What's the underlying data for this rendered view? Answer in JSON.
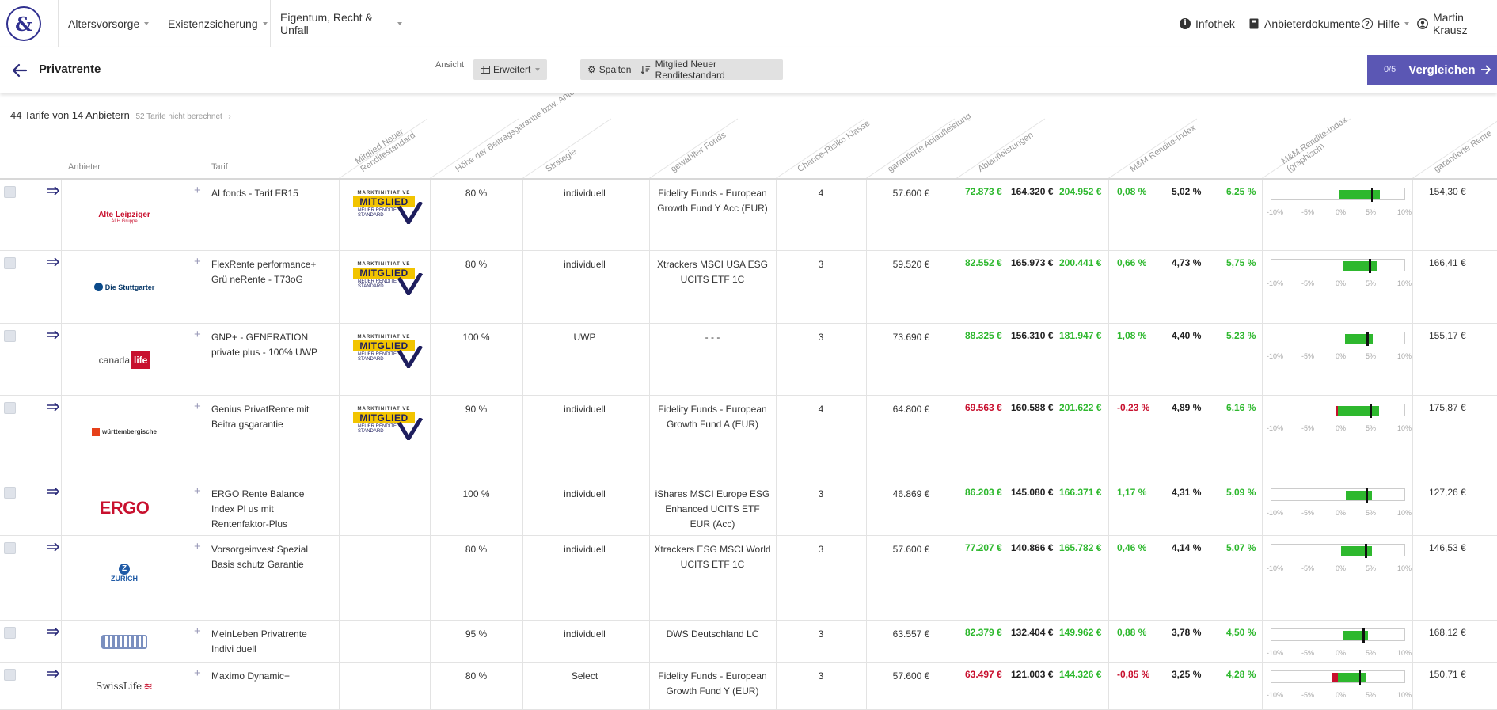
{
  "nav": {
    "logo": "&",
    "items": [
      {
        "label": "Altersvorsorge"
      },
      {
        "label": "Existenzsicherung"
      },
      {
        "label": "Eigentum, Recht & Unfall"
      }
    ],
    "right": {
      "infothek": "Infothek",
      "anbieterdokumente": "Anbieterdokumente",
      "hilfe": "Hilfe",
      "user": "Martin Krausz"
    }
  },
  "toolbar": {
    "title": "Privatrente",
    "ansicht_label": "Ansicht",
    "ansicht_value": "Erweitert",
    "spalten": "Spalten",
    "sort_label": "Mitglied Neuer Renditestandard",
    "compare_count": "0/5",
    "compare_label": "Vergleichen"
  },
  "summary": {
    "main": "44 Tarife von 14 Anbietern",
    "sub": "52 Tarife nicht berechnet"
  },
  "columns": {
    "anbieter": "Anbieter",
    "tarif": "Tarif",
    "mitglied": "Mitglied Neuer\nRenditestandard",
    "garantie": "Höhe der Beitragsgarantie bzw. Anteil",
    "strategie": "Strategie",
    "fonds": "gewählter Fonds",
    "chance": "Chance-Risiko Klasse",
    "garant_ablauf": "garantierte Ablaufleistung",
    "ablauf": "Ablaufleistungen",
    "mm_index": "M&M Rendite-Index",
    "mm_graph": "M&M Rendite-Index\n(graphisch)",
    "garant_rente": "garantierte Rente"
  },
  "badge": {
    "top": "MARKTINITIATIVE",
    "main": "MITGLIED",
    "sub1": "NEUER RENDITE",
    "sub2": "STANDARD"
  },
  "graph_ticks": [
    "-10%",
    "-5%",
    "0%",
    "5%",
    "10%"
  ],
  "rows": [
    {
      "provider": "Alte Leipziger",
      "tarif": "ALfonds - Tarif FR15",
      "mitglied": true,
      "garantie": "80 %",
      "strategie": "individuell",
      "fonds": "Fidelity Funds - European Growth Fund Y Acc (EUR)",
      "chance": "4",
      "garant_ablauf": "57.600 €",
      "ablauf1": "72.873 €",
      "ablauf1_color": "green",
      "ablauf2": "164.320 €",
      "ablauf3": "204.952 €",
      "idx1": "0,08 %",
      "idx1_color": "green",
      "idx2": "5,02 %",
      "idx3": "6,25 %",
      "graph": {
        "low": 0.08,
        "mid": 5.02,
        "high": 6.25
      },
      "rente": "154,30 €"
    },
    {
      "provider": "Die Stuttgarter",
      "tarif": "FlexRente performance+ Grü neRente - T73oG",
      "mitglied": true,
      "garantie": "80 %",
      "strategie": "individuell",
      "fonds": "Xtrackers MSCI USA ESG UCITS ETF 1C",
      "chance": "3",
      "garant_ablauf": "59.520 €",
      "ablauf1": "82.552 €",
      "ablauf1_color": "green",
      "ablauf2": "165.973 €",
      "ablauf3": "200.441 €",
      "idx1": "0,66 %",
      "idx1_color": "green",
      "idx2": "4,73 %",
      "idx3": "5,75 %",
      "graph": {
        "low": 0.66,
        "mid": 4.73,
        "high": 5.75
      },
      "rente": "166,41 €"
    },
    {
      "provider": "canada life",
      "tarif": "GNP+ - GENERATION private plus - 100% UWP",
      "mitglied": true,
      "garantie": "100 %",
      "strategie": "UWP",
      "fonds": "- - -",
      "chance": "3",
      "garant_ablauf": "73.690 €",
      "ablauf1": "88.325 €",
      "ablauf1_color": "green",
      "ablauf2": "156.310 €",
      "ablauf3": "181.947 €",
      "idx1": "1,08 %",
      "idx1_color": "green",
      "idx2": "4,40 %",
      "idx3": "5,23 %",
      "graph": {
        "low": 1.08,
        "mid": 4.4,
        "high": 5.23
      },
      "rente": "155,17 €"
    },
    {
      "provider": "württembergische",
      "tarif": "Genius PrivatRente mit Beitra gsgarantie",
      "mitglied": true,
      "garantie": "90 %",
      "strategie": "individuell",
      "fonds": "Fidelity Funds - European Growth Fund A (EUR)",
      "chance": "4",
      "garant_ablauf": "64.800 €",
      "ablauf1": "69.563 €",
      "ablauf1_color": "red",
      "ablauf2": "160.588 €",
      "ablauf3": "201.622 €",
      "idx1": "-0,23 %",
      "idx1_color": "red",
      "idx2": "4,89 %",
      "idx3": "6,16 %",
      "graph": {
        "low": -0.23,
        "mid": 4.89,
        "high": 6.16
      },
      "rente": "175,87 €"
    },
    {
      "provider": "ERGO",
      "tarif": "ERGO Rente Balance Index Pl us mit Rentenfaktor-Plus",
      "mitglied": false,
      "garantie": "100 %",
      "strategie": "individuell",
      "fonds": "iShares MSCI Europe ESG Enhanced UCITS ETF EUR (Acc)",
      "chance": "3",
      "garant_ablauf": "46.869 €",
      "ablauf1": "86.203 €",
      "ablauf1_color": "green",
      "ablauf2": "145.080 €",
      "ablauf3": "166.371 €",
      "idx1": "1,17 %",
      "idx1_color": "green",
      "idx2": "4,31 %",
      "idx3": "5,09 %",
      "graph": {
        "low": 1.17,
        "mid": 4.31,
        "high": 5.09
      },
      "rente": "127,26 €"
    },
    {
      "provider": "ZURICH",
      "tarif": "Vorsorgeinvest Spezial Basis schutz Garantie",
      "mitglied": false,
      "garantie": "80 %",
      "strategie": "individuell",
      "fonds": "Xtrackers ESG MSCI World UCITS ETF 1C",
      "chance": "3",
      "garant_ablauf": "57.600 €",
      "ablauf1": "77.207 €",
      "ablauf1_color": "green",
      "ablauf2": "140.866 €",
      "ablauf3": "165.782 €",
      "idx1": "0,46 %",
      "idx1_color": "green",
      "idx2": "4,14 %",
      "idx3": "5,07 %",
      "graph": {
        "low": 0.46,
        "mid": 4.14,
        "high": 5.07
      },
      "rente": "146,53 €"
    },
    {
      "provider": "Volkswohl Bund",
      "tarif": "MeinLeben Privatrente Indivi duell",
      "mitglied": false,
      "garantie": "95 %",
      "strategie": "individuell",
      "fonds": "DWS Deutschland LC",
      "chance": "3",
      "garant_ablauf": "63.557 €",
      "ablauf1": "82.379 €",
      "ablauf1_color": "green",
      "ablauf2": "132.404 €",
      "ablauf3": "149.962 €",
      "idx1": "0,88 %",
      "idx1_color": "green",
      "idx2": "3,78 %",
      "idx3": "4,50 %",
      "graph": {
        "low": 0.88,
        "mid": 3.78,
        "high": 4.5
      },
      "rente": "168,12 €"
    },
    {
      "provider": "SwissLife",
      "tarif": "Maximo Dynamic+",
      "mitglied": false,
      "garantie": "80 %",
      "strategie": "Select",
      "fonds": "Fidelity Funds - European Growth Fund Y (EUR)",
      "chance": "3",
      "garant_ablauf": "57.600 €",
      "ablauf1": "63.497 €",
      "ablauf1_color": "red",
      "ablauf2": "121.003 €",
      "ablauf3": "144.326 €",
      "idx1": "-0,85 %",
      "idx1_color": "red",
      "idx2": "3,25 %",
      "idx3": "4,28 %",
      "graph": {
        "low": -0.85,
        "mid": 3.25,
        "high": 4.28
      },
      "rente": "150,71 €"
    }
  ]
}
